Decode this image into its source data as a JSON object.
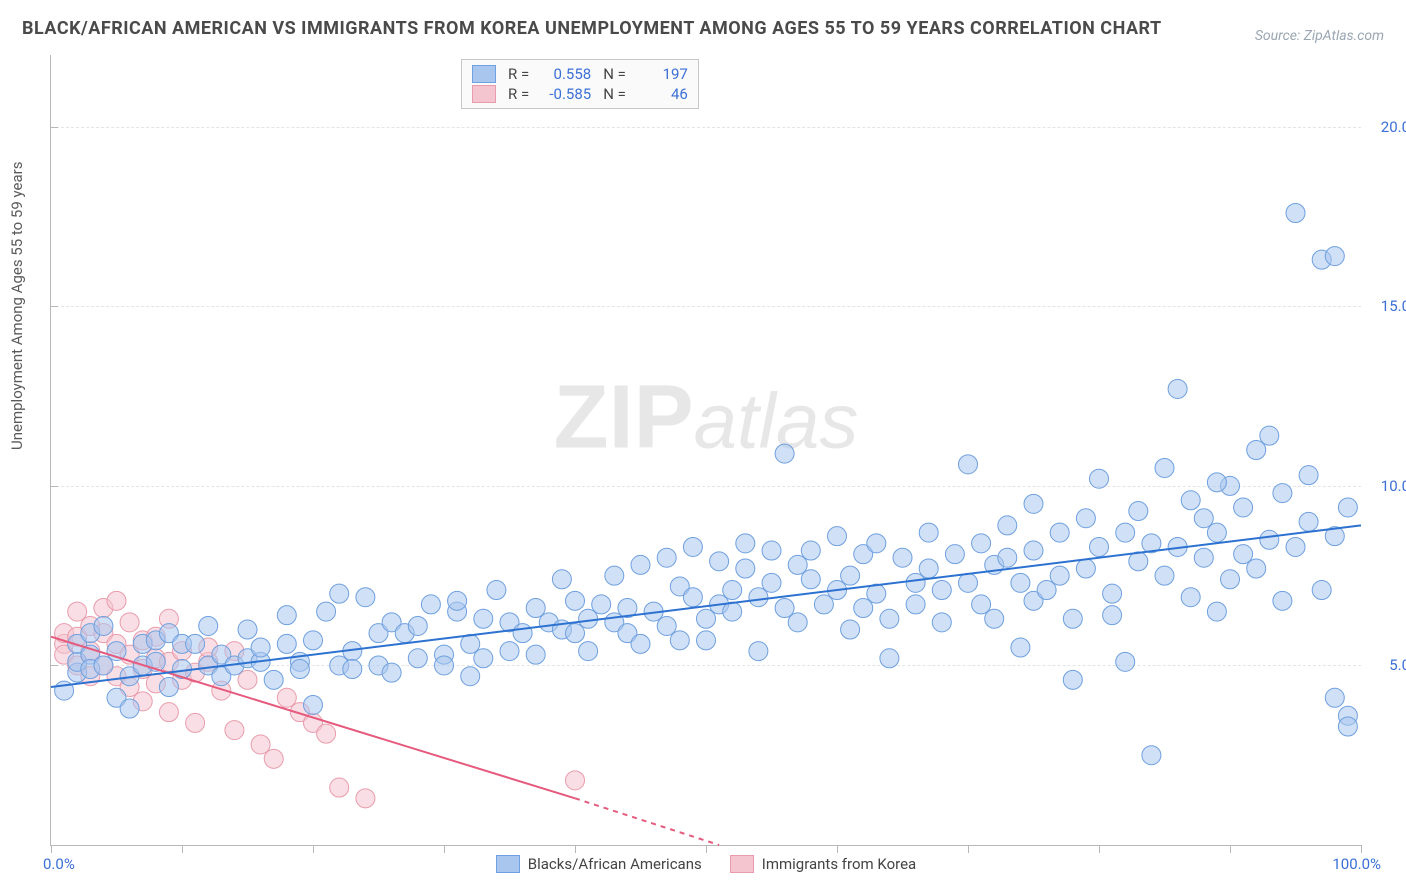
{
  "title": "BLACK/AFRICAN AMERICAN VS IMMIGRANTS FROM KOREA UNEMPLOYMENT AMONG AGES 55 TO 59 YEARS CORRELATION CHART",
  "source": "Source: ZipAtlas.com",
  "watermark": {
    "zip": "ZIP",
    "atlas": "atlas"
  },
  "ylabel": "Unemployment Among Ages 55 to 59 years",
  "chart": {
    "type": "scatter",
    "xlim": [
      0,
      100
    ],
    "ylim": [
      0,
      22
    ],
    "x_tick_positions": [
      0,
      10,
      20,
      30,
      40,
      50,
      60,
      70,
      80,
      90,
      100
    ],
    "y_grid": [
      5,
      10,
      15,
      20
    ],
    "y_tick_labels": [
      "5.0%",
      "10.0%",
      "15.0%",
      "20.0%"
    ],
    "x_min_label": "0.0%",
    "x_max_label": "100.0%",
    "background_color": "#ffffff",
    "grid_color": "#e4e4e4",
    "axis_color": "#b8b8b8",
    "marker_radius": 9.5,
    "marker_opacity": 0.55,
    "line_width": 2
  },
  "series": {
    "blue": {
      "label": "Blacks/African Americans",
      "fill": "#a9c7ee",
      "stroke": "#6fa0df",
      "line_stroke": "#2d72d0",
      "R": "0.558",
      "N": "197",
      "trend": {
        "x1": 0,
        "y1": 4.4,
        "x2": 100,
        "y2": 8.9
      },
      "points": [
        [
          1,
          4.3
        ],
        [
          2,
          4.8
        ],
        [
          2,
          5.1
        ],
        [
          2,
          5.6
        ],
        [
          3,
          5.3
        ],
        [
          3,
          4.9
        ],
        [
          3,
          5.9
        ],
        [
          4,
          6.1
        ],
        [
          4,
          5.0
        ],
        [
          5,
          4.1
        ],
        [
          5,
          5.4
        ],
        [
          6,
          3.8
        ],
        [
          6,
          4.7
        ],
        [
          7,
          5.6
        ],
        [
          7,
          5.0
        ],
        [
          8,
          5.1
        ],
        [
          8,
          5.7
        ],
        [
          9,
          4.4
        ],
        [
          9,
          5.9
        ],
        [
          10,
          4.9
        ],
        [
          10,
          5.6
        ],
        [
          11,
          5.6
        ],
        [
          12,
          5.0
        ],
        [
          12,
          6.1
        ],
        [
          13,
          5.3
        ],
        [
          13,
          4.7
        ],
        [
          14,
          5.0
        ],
        [
          15,
          6.0
        ],
        [
          15,
          5.2
        ],
        [
          16,
          5.1
        ],
        [
          16,
          5.5
        ],
        [
          17,
          4.6
        ],
        [
          18,
          5.6
        ],
        [
          18,
          6.4
        ],
        [
          19,
          5.1
        ],
        [
          19,
          4.9
        ],
        [
          20,
          5.7
        ],
        [
          20,
          3.9
        ],
        [
          21,
          6.5
        ],
        [
          22,
          7.0
        ],
        [
          22,
          5.0
        ],
        [
          23,
          5.4
        ],
        [
          23,
          4.9
        ],
        [
          24,
          6.9
        ],
        [
          25,
          5.0
        ],
        [
          25,
          5.9
        ],
        [
          26,
          6.2
        ],
        [
          26,
          4.8
        ],
        [
          27,
          5.9
        ],
        [
          28,
          5.2
        ],
        [
          28,
          6.1
        ],
        [
          29,
          6.7
        ],
        [
          30,
          5.3
        ],
        [
          30,
          5.0
        ],
        [
          31,
          6.5
        ],
        [
          31,
          6.8
        ],
        [
          32,
          5.6
        ],
        [
          32,
          4.7
        ],
        [
          33,
          6.3
        ],
        [
          33,
          5.2
        ],
        [
          34,
          7.1
        ],
        [
          35,
          5.4
        ],
        [
          35,
          6.2
        ],
        [
          36,
          5.9
        ],
        [
          37,
          6.6
        ],
        [
          37,
          5.3
        ],
        [
          38,
          6.2
        ],
        [
          39,
          7.4
        ],
        [
          39,
          6.0
        ],
        [
          40,
          5.9
        ],
        [
          40,
          6.8
        ],
        [
          41,
          6.3
        ],
        [
          41,
          5.4
        ],
        [
          42,
          6.7
        ],
        [
          43,
          7.5
        ],
        [
          43,
          6.2
        ],
        [
          44,
          6.6
        ],
        [
          44,
          5.9
        ],
        [
          45,
          7.8
        ],
        [
          45,
          5.6
        ],
        [
          46,
          6.5
        ],
        [
          47,
          8.0
        ],
        [
          47,
          6.1
        ],
        [
          48,
          7.2
        ],
        [
          48,
          5.7
        ],
        [
          49,
          6.9
        ],
        [
          49,
          8.3
        ],
        [
          50,
          6.3
        ],
        [
          50,
          5.7
        ],
        [
          51,
          7.9
        ],
        [
          51,
          6.7
        ],
        [
          52,
          7.1
        ],
        [
          52,
          6.5
        ],
        [
          53,
          8.4
        ],
        [
          53,
          7.7
        ],
        [
          54,
          5.4
        ],
        [
          54,
          6.9
        ],
        [
          55,
          7.3
        ],
        [
          55,
          8.2
        ],
        [
          56,
          6.6
        ],
        [
          56,
          10.9
        ],
        [
          57,
          7.8
        ],
        [
          57,
          6.2
        ],
        [
          58,
          8.2
        ],
        [
          58,
          7.4
        ],
        [
          59,
          6.7
        ],
        [
          60,
          7.1
        ],
        [
          60,
          8.6
        ],
        [
          61,
          6.0
        ],
        [
          61,
          7.5
        ],
        [
          62,
          8.1
        ],
        [
          62,
          6.6
        ],
        [
          63,
          7.0
        ],
        [
          63,
          8.4
        ],
        [
          64,
          6.3
        ],
        [
          64,
          5.2
        ],
        [
          65,
          8.0
        ],
        [
          66,
          7.3
        ],
        [
          66,
          6.7
        ],
        [
          67,
          8.7
        ],
        [
          67,
          7.7
        ],
        [
          68,
          6.2
        ],
        [
          68,
          7.1
        ],
        [
          69,
          8.1
        ],
        [
          70,
          10.6
        ],
        [
          70,
          7.3
        ],
        [
          71,
          8.4
        ],
        [
          71,
          6.7
        ],
        [
          72,
          7.8
        ],
        [
          72,
          6.3
        ],
        [
          73,
          8.0
        ],
        [
          73,
          8.9
        ],
        [
          74,
          7.3
        ],
        [
          74,
          5.5
        ],
        [
          75,
          6.8
        ],
        [
          75,
          8.2
        ],
        [
          76,
          7.1
        ],
        [
          77,
          8.7
        ],
        [
          77,
          7.5
        ],
        [
          78,
          6.3
        ],
        [
          78,
          4.6
        ],
        [
          79,
          9.1
        ],
        [
          79,
          7.7
        ],
        [
          80,
          10.2
        ],
        [
          80,
          8.3
        ],
        [
          81,
          7.0
        ],
        [
          81,
          6.4
        ],
        [
          82,
          8.7
        ],
        [
          82,
          5.1
        ],
        [
          83,
          9.3
        ],
        [
          83,
          7.9
        ],
        [
          84,
          8.4
        ],
        [
          84,
          2.5
        ],
        [
          85,
          10.5
        ],
        [
          85,
          7.5
        ],
        [
          86,
          12.7
        ],
        [
          86,
          8.3
        ],
        [
          87,
          6.9
        ],
        [
          87,
          9.6
        ],
        [
          88,
          8.0
        ],
        [
          88,
          9.1
        ],
        [
          89,
          6.5
        ],
        [
          89,
          8.7
        ],
        [
          90,
          7.4
        ],
        [
          90,
          10.0
        ],
        [
          91,
          8.1
        ],
        [
          91,
          9.4
        ],
        [
          92,
          11.0
        ],
        [
          92,
          7.7
        ],
        [
          93,
          8.5
        ],
        [
          93,
          11.4
        ],
        [
          94,
          9.8
        ],
        [
          94,
          6.8
        ],
        [
          95,
          8.3
        ],
        [
          95,
          17.6
        ],
        [
          96,
          9.0
        ],
        [
          96,
          10.3
        ],
        [
          97,
          16.3
        ],
        [
          97,
          7.1
        ],
        [
          98,
          16.4
        ],
        [
          98,
          8.6
        ],
        [
          98,
          4.1
        ],
        [
          99,
          9.4
        ],
        [
          99,
          3.6
        ],
        [
          99,
          3.3
        ],
        [
          89,
          10.1
        ],
        [
          75,
          9.5
        ]
      ]
    },
    "pink": {
      "label": "Immigrants from Korea",
      "fill": "#f4c5cf",
      "stroke": "#e99cac",
      "line_stroke": "#e55a7d",
      "R": "-0.585",
      "N": "46",
      "trend_solid": {
        "x1": 0,
        "y1": 5.8,
        "x2": 40,
        "y2": 1.3
      },
      "trend_dash": {
        "x1": 40,
        "y1": 1.3,
        "x2": 51,
        "y2": 0.0
      },
      "points": [
        [
          1,
          5.6
        ],
        [
          1,
          5.9
        ],
        [
          1,
          5.3
        ],
        [
          2,
          6.5
        ],
        [
          2,
          5.0
        ],
        [
          2,
          5.8
        ],
        [
          3,
          4.7
        ],
        [
          3,
          6.1
        ],
        [
          3,
          5.4
        ],
        [
          4,
          5.9
        ],
        [
          4,
          5.0
        ],
        [
          4,
          6.6
        ],
        [
          5,
          4.7
        ],
        [
          5,
          5.6
        ],
        [
          5,
          6.8
        ],
        [
          6,
          4.4
        ],
        [
          6,
          5.3
        ],
        [
          6,
          6.2
        ],
        [
          7,
          4.0
        ],
        [
          7,
          5.7
        ],
        [
          7,
          4.9
        ],
        [
          8,
          5.2
        ],
        [
          8,
          5.8
        ],
        [
          8,
          4.5
        ],
        [
          9,
          3.7
        ],
        [
          9,
          5.1
        ],
        [
          9,
          6.3
        ],
        [
          10,
          5.4
        ],
        [
          10,
          4.6
        ],
        [
          11,
          4.8
        ],
        [
          11,
          3.4
        ],
        [
          12,
          5.1
        ],
        [
          12,
          5.5
        ],
        [
          13,
          4.3
        ],
        [
          14,
          3.2
        ],
        [
          14,
          5.4
        ],
        [
          15,
          4.6
        ],
        [
          16,
          2.8
        ],
        [
          17,
          2.4
        ],
        [
          18,
          4.1
        ],
        [
          19,
          3.7
        ],
        [
          20,
          3.4
        ],
        [
          21,
          3.1
        ],
        [
          22,
          1.6
        ],
        [
          24,
          1.3
        ],
        [
          40,
          1.8
        ]
      ]
    }
  }
}
